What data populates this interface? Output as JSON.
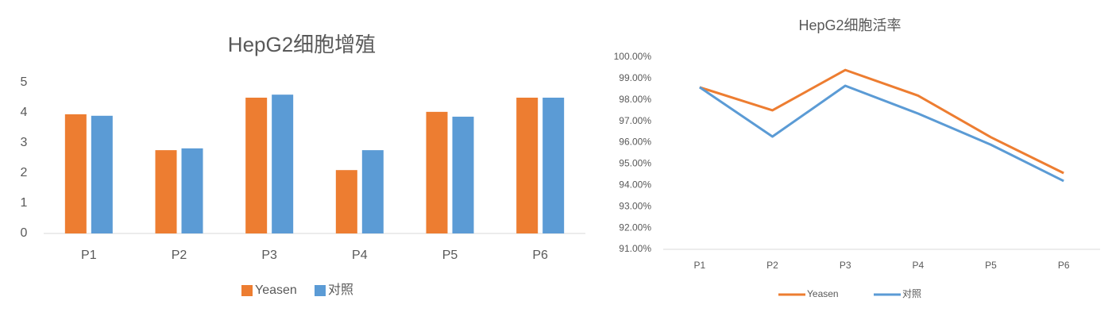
{
  "chart_data": [
    {
      "type": "bar",
      "title": "HepG2细胞增殖",
      "categories": [
        "P1",
        "P2",
        "P3",
        "P4",
        "P5",
        "P6"
      ],
      "series": [
        {
          "name": "Yeasen",
          "color": "#ed7d31",
          "values": [
            3.95,
            2.76,
            4.5,
            2.1,
            4.03,
            4.5
          ]
        },
        {
          "name": "对照",
          "color": "#5b9bd5",
          "values": [
            3.9,
            2.82,
            4.6,
            2.76,
            3.87,
            4.5
          ]
        }
      ],
      "ylim": [
        0,
        5
      ],
      "yticks": [
        0,
        1,
        2,
        3,
        4,
        5
      ],
      "grid": false,
      "legend": "bottom"
    },
    {
      "type": "line",
      "title": "HepG2细胞活率",
      "categories": [
        "P1",
        "P2",
        "P3",
        "P4",
        "P5",
        "P6"
      ],
      "series": [
        {
          "name": "Yeasen",
          "color": "#ed7d31",
          "values": [
            98.59,
            97.51,
            99.4,
            98.2,
            96.25,
            94.57
          ]
        },
        {
          "name": "对照",
          "color": "#5b9bd5",
          "values": [
            98.59,
            96.28,
            98.66,
            97.36,
            95.9,
            94.2
          ]
        }
      ],
      "ylim": [
        91,
        100
      ],
      "yticks": [
        {
          "value": 91,
          "label": "91.00%"
        },
        {
          "value": 92,
          "label": "92.00%"
        },
        {
          "value": 93,
          "label": "93.00%"
        },
        {
          "value": 94,
          "label": "94.00%"
        },
        {
          "value": 95,
          "label": "95.00%"
        },
        {
          "value": 96,
          "label": "96.00%"
        },
        {
          "value": 97,
          "label": "97.00%"
        },
        {
          "value": 98,
          "label": "98.00%"
        },
        {
          "value": 99,
          "label": "99.00%"
        },
        {
          "value": 100,
          "label": "100.00%"
        }
      ],
      "grid": false,
      "legend": "bottom"
    }
  ]
}
